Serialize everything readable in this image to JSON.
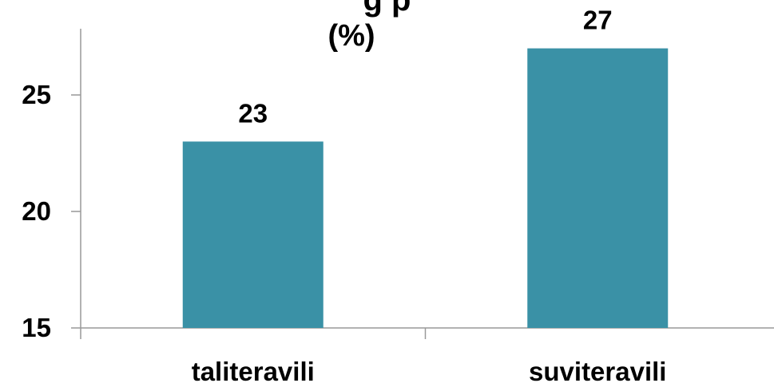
{
  "chart_data": {
    "type": "bar",
    "title_visible": "g p",
    "subtitle": "(%)",
    "categories": [
      "taliteravili",
      "suviteravili"
    ],
    "values": [
      23,
      27
    ],
    "data_labels": [
      "23",
      "27"
    ],
    "ylim": [
      15,
      27.5
    ],
    "yticks": [
      15,
      20,
      25
    ],
    "xlabel": "",
    "ylabel": "",
    "grid": false,
    "legend": "none",
    "bar_color": "#3a91a6",
    "axis_color": "#999999"
  }
}
